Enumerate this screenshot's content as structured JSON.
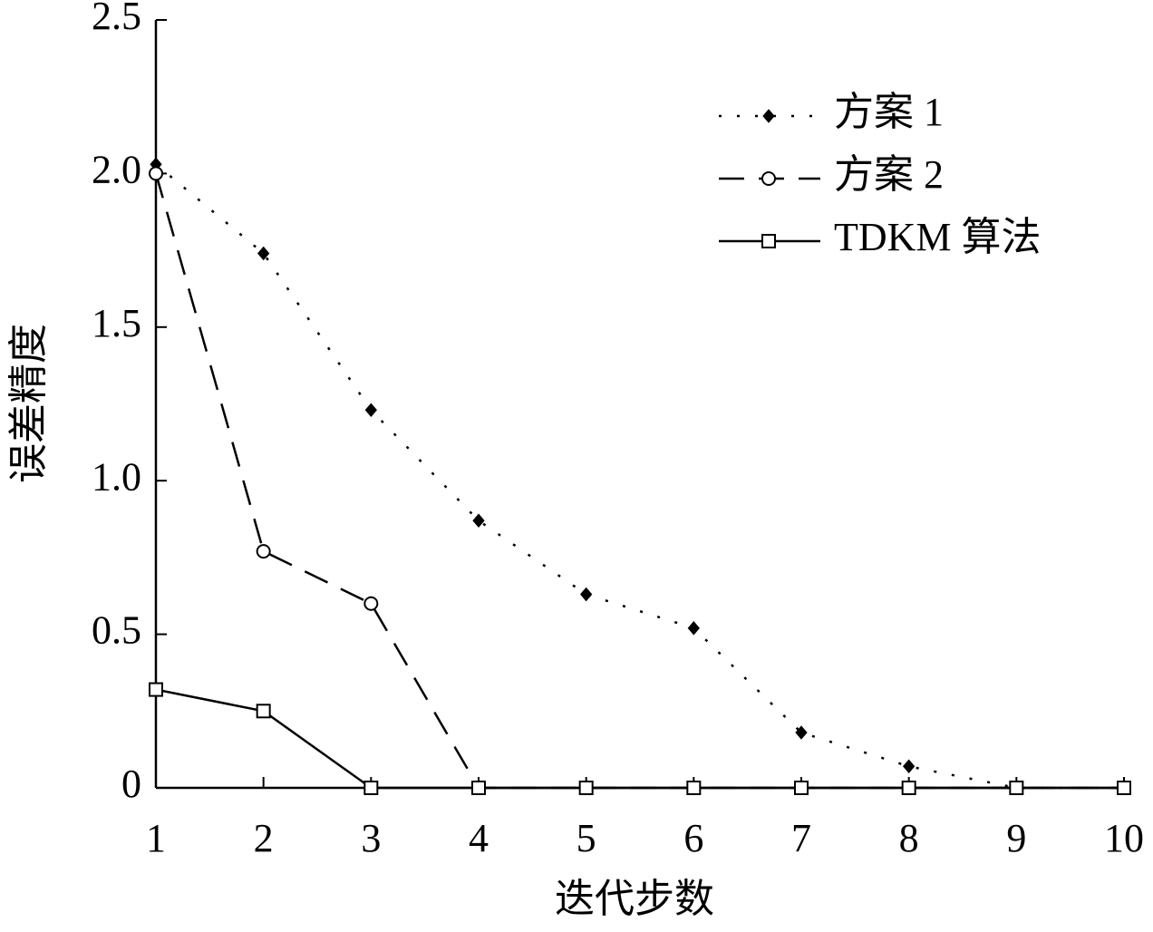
{
  "chart_data": {
    "type": "line",
    "x_label": "迭代步数",
    "y_label": "误差精度",
    "x": [
      1,
      2,
      3,
      4,
      5,
      6,
      7,
      8,
      9,
      10
    ],
    "xlim": [
      1,
      10
    ],
    "xticks": [
      1,
      2,
      3,
      4,
      5,
      6,
      7,
      8,
      9,
      10
    ],
    "ylim": [
      0,
      2.5
    ],
    "yticks": [
      0,
      0.5,
      {
        "value": 1,
        "label": "1.0"
      },
      1.5,
      {
        "value": 2,
        "label": "2.0"
      },
      2.5
    ],
    "legend_position": "upper right",
    "series": [
      {
        "name": "方案 1",
        "color": "#000000",
        "linestyle": "dotted",
        "marker": "diamond",
        "values": [
          2.03,
          1.74,
          1.23,
          0.87,
          0.63,
          0.52,
          0.18,
          0.07,
          0,
          0
        ]
      },
      {
        "name": "方案 2",
        "color": "#000000",
        "linestyle": "dashed",
        "marker": "circle",
        "values": [
          2.0,
          0.77,
          0.6,
          0,
          0,
          0,
          0,
          0,
          0,
          0
        ]
      },
      {
        "name": "TDKM 算法",
        "color": "#000000",
        "linestyle": "solid",
        "marker": "square",
        "values": [
          0.32,
          0.25,
          0,
          0,
          0,
          0,
          0,
          0,
          0,
          0
        ]
      }
    ]
  }
}
